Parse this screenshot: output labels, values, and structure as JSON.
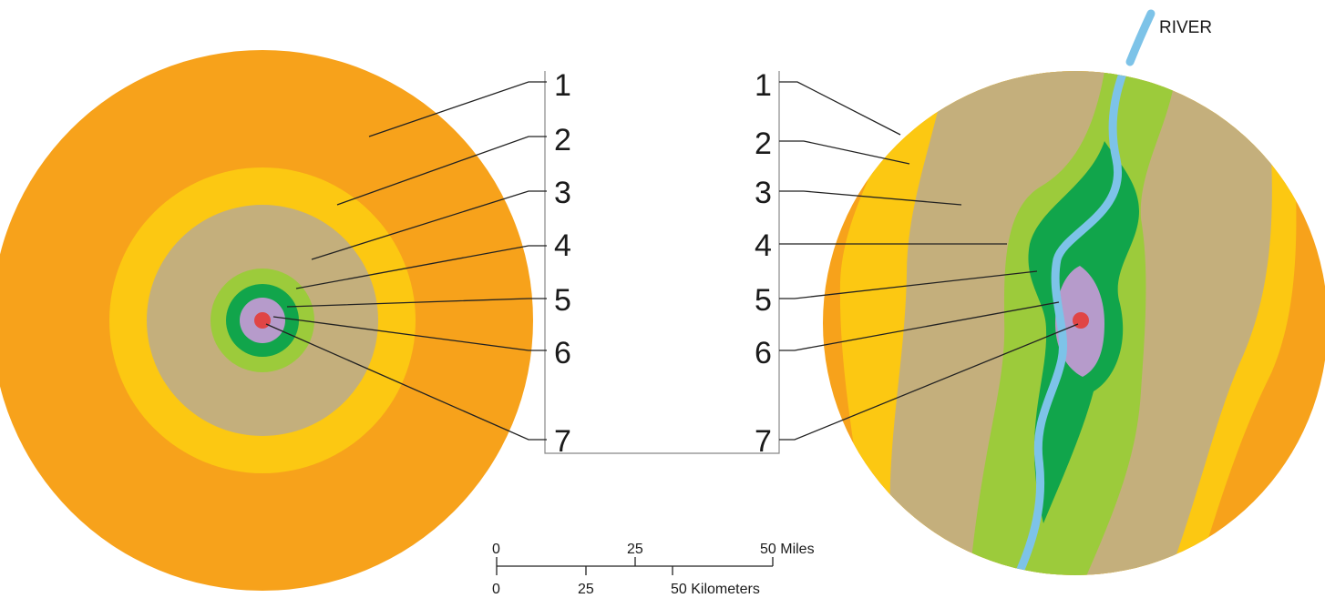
{
  "colors": {
    "zone1": "#F7A21B",
    "zone2": "#FCC812",
    "zone3": "#C4AF7C",
    "zone4": "#9CCB3B",
    "zone5": "#11A54B",
    "zone6": "#B69BCB",
    "zone7": "#E04545",
    "river": "#7DC3E8"
  },
  "zone_labels": [
    "1",
    "2",
    "3",
    "4",
    "5",
    "6",
    "7"
  ],
  "river_label": "RIVER",
  "scale_bar": {
    "miles_ticks": [
      "0",
      "25",
      "50 Miles"
    ],
    "kilometers_ticks": [
      "0",
      "25",
      "50 Kilometers"
    ]
  }
}
